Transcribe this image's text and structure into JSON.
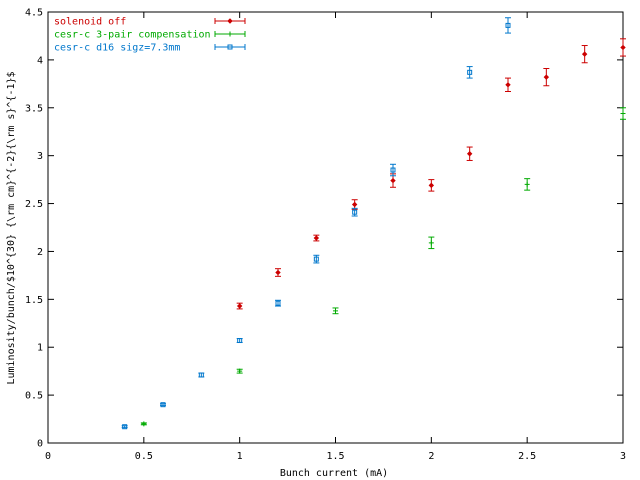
{
  "chart_data": {
    "type": "scatter",
    "title": "",
    "xlabel": "Bunch current (mA)",
    "ylabel": "Luminosity/bunch/$10^{30} {\\rm cm}^{-2}{\\rm s}^{-1}$",
    "xlim": [
      0,
      3
    ],
    "ylim": [
      0,
      4.5
    ],
    "xticks": [
      {
        "v": 0,
        "label": "0"
      },
      {
        "v": 0.5,
        "label": "0.5"
      },
      {
        "v": 1,
        "label": "1"
      },
      {
        "v": 1.5,
        "label": "1.5"
      },
      {
        "v": 2,
        "label": "2"
      },
      {
        "v": 2.5,
        "label": "2.5"
      },
      {
        "v": 3,
        "label": "3"
      }
    ],
    "yticks": [
      {
        "v": 0,
        "label": "0"
      },
      {
        "v": 0.5,
        "label": "0.5"
      },
      {
        "v": 1,
        "label": "1"
      },
      {
        "v": 1.5,
        "label": "1.5"
      },
      {
        "v": 2,
        "label": "2"
      },
      {
        "v": 2.5,
        "label": "2.5"
      },
      {
        "v": 3,
        "label": "3"
      },
      {
        "v": 3.5,
        "label": "3.5"
      },
      {
        "v": 4,
        "label": "4"
      },
      {
        "v": 4.5,
        "label": "4.5"
      }
    ],
    "grid": false,
    "legend_position": "top-left",
    "series": [
      {
        "name": "solenoid off",
        "color": "#cc0000",
        "marker": "diamond",
        "points": [
          {
            "x": 1.0,
            "y": 1.43,
            "err": 0.03
          },
          {
            "x": 1.2,
            "y": 1.78,
            "err": 0.04
          },
          {
            "x": 1.4,
            "y": 2.14,
            "err": 0.03
          },
          {
            "x": 1.6,
            "y": 2.49,
            "err": 0.05
          },
          {
            "x": 1.8,
            "y": 2.74,
            "err": 0.07
          },
          {
            "x": 2.0,
            "y": 2.69,
            "err": 0.06
          },
          {
            "x": 2.2,
            "y": 3.02,
            "err": 0.07
          },
          {
            "x": 2.4,
            "y": 3.74,
            "err": 0.07
          },
          {
            "x": 2.6,
            "y": 3.82,
            "err": 0.09
          },
          {
            "x": 2.8,
            "y": 4.06,
            "err": 0.09
          },
          {
            "x": 3.0,
            "y": 4.13,
            "err": 0.09
          }
        ]
      },
      {
        "name": "cesr-c 3-pair compensation",
        "color": "#00aa00",
        "marker": "plus",
        "points": [
          {
            "x": 0.5,
            "y": 0.2,
            "err": 0.01
          },
          {
            "x": 1.0,
            "y": 0.75,
            "err": 0.02
          },
          {
            "x": 1.5,
            "y": 1.38,
            "err": 0.03
          },
          {
            "x": 2.0,
            "y": 2.09,
            "err": 0.06
          },
          {
            "x": 2.5,
            "y": 2.7,
            "err": 0.06
          },
          {
            "x": 3.0,
            "y": 3.44,
            "err": 0.06
          }
        ]
      },
      {
        "name": "cesr-c d16 sigz=7.3mm",
        "color": "#0077cc",
        "marker": "square",
        "points": [
          {
            "x": 0.4,
            "y": 0.17,
            "err": 0.01
          },
          {
            "x": 0.6,
            "y": 0.4,
            "err": 0.01
          },
          {
            "x": 0.8,
            "y": 0.71,
            "err": 0.02
          },
          {
            "x": 1.0,
            "y": 1.07,
            "err": 0.02
          },
          {
            "x": 1.2,
            "y": 1.46,
            "err": 0.03
          },
          {
            "x": 1.4,
            "y": 1.92,
            "err": 0.04
          },
          {
            "x": 1.6,
            "y": 2.41,
            "err": 0.04
          },
          {
            "x": 1.8,
            "y": 2.85,
            "err": 0.06
          },
          {
            "x": 2.2,
            "y": 3.87,
            "err": 0.06
          },
          {
            "x": 2.4,
            "y": 4.36,
            "err": 0.08
          }
        ]
      }
    ]
  }
}
